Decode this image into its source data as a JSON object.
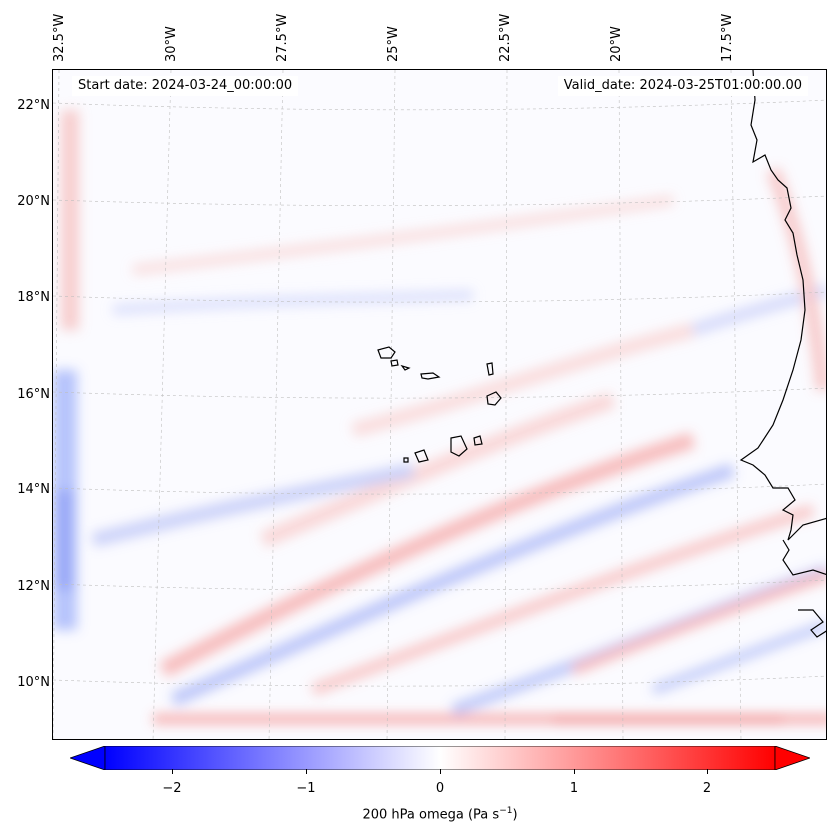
{
  "map": {
    "lon_labels": [
      "32.5°W",
      "30°W",
      "27.5°W",
      "25°W",
      "22.5°W",
      "20°W",
      "17.5°W"
    ],
    "lat_labels": [
      "22°N",
      "20°N",
      "18°N",
      "16°N",
      "14°N",
      "12°N",
      "10°N"
    ],
    "start_date": "Start date: 2024-03-24_00:00:00",
    "valid_date": "Valid_date: 2024-03-25T01:00:00.00",
    "field": "200 hPa omega",
    "field_units_base": "Pa s",
    "field_units_exp": "−1"
  },
  "colorbar": {
    "ticks": [
      "−2",
      "−1",
      "0",
      "1",
      "2"
    ],
    "cmap": "bwr",
    "min": -2.6,
    "max": 2.6,
    "extend": "both",
    "low_color": "#0000ff",
    "high_color": "#ff0000"
  }
}
